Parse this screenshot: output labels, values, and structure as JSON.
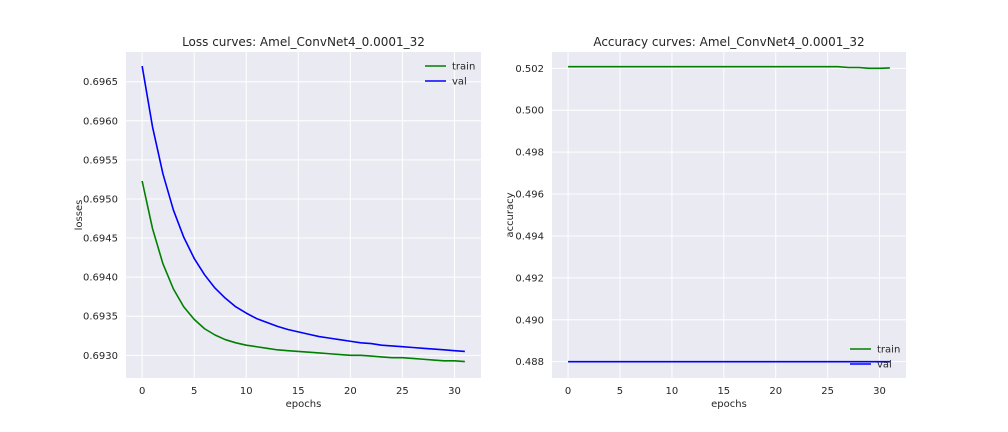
{
  "chart_data": [
    {
      "type": "line",
      "title": "Loss curves: Amel_ConvNet4_0.0001_32",
      "xlabel": "epochs",
      "ylabel": "losses",
      "xlim": [
        -1.55,
        32.55
      ],
      "ylim": [
        0.69271,
        0.69688
      ],
      "xticks": [
        0,
        5,
        10,
        15,
        20,
        25,
        30
      ],
      "yticks": [
        0.693,
        0.6935,
        0.694,
        0.6945,
        0.695,
        0.6955,
        0.696,
        0.6965
      ],
      "ytick_labels": [
        "0.6930",
        "0.6935",
        "0.6940",
        "0.6945",
        "0.6950",
        "0.6955",
        "0.6960",
        "0.6965"
      ],
      "grid": true,
      "legend_position": "upper right",
      "x": [
        0,
        1,
        2,
        3,
        4,
        5,
        6,
        7,
        8,
        9,
        10,
        11,
        12,
        13,
        14,
        15,
        16,
        17,
        18,
        19,
        20,
        21,
        22,
        23,
        24,
        25,
        26,
        27,
        28,
        29,
        30,
        31
      ],
      "series": [
        {
          "name": "train",
          "color": "#008000",
          "values": [
            0.69523,
            0.69462,
            0.69417,
            0.69385,
            0.69362,
            0.69346,
            0.69334,
            0.69326,
            0.6932,
            0.69316,
            0.69313,
            0.69311,
            0.69309,
            0.69307,
            0.69306,
            0.69305,
            0.69304,
            0.69303,
            0.69302,
            0.69301,
            0.693,
            0.693,
            0.69299,
            0.69298,
            0.69297,
            0.69297,
            0.69296,
            0.69295,
            0.69294,
            0.69293,
            0.69293,
            0.69292
          ]
        },
        {
          "name": "val",
          "color": "#0000ff",
          "values": [
            0.6967,
            0.69592,
            0.69532,
            0.69486,
            0.69451,
            0.69424,
            0.69403,
            0.69386,
            0.69373,
            0.69362,
            0.69354,
            0.69347,
            0.69342,
            0.69337,
            0.69333,
            0.6933,
            0.69327,
            0.69324,
            0.69322,
            0.6932,
            0.69318,
            0.69316,
            0.69315,
            0.69313,
            0.69312,
            0.69311,
            0.6931,
            0.69309,
            0.69308,
            0.69307,
            0.69306,
            0.69305
          ]
        }
      ]
    },
    {
      "type": "line",
      "title": "Accuracy curves: Amel_ConvNet4_0.0001_32",
      "xlabel": "epochs",
      "ylabel": "accuracy",
      "xlim": [
        -1.55,
        32.55
      ],
      "ylim": [
        0.48722,
        0.50278
      ],
      "xticks": [
        0,
        5,
        10,
        15,
        20,
        25,
        30
      ],
      "yticks": [
        0.488,
        0.49,
        0.492,
        0.494,
        0.496,
        0.498,
        0.5,
        0.502
      ],
      "ytick_labels": [
        "0.488",
        "0.490",
        "0.492",
        "0.494",
        "0.496",
        "0.498",
        "0.500",
        "0.502"
      ],
      "grid": true,
      "legend_position": "lower right",
      "x": [
        0,
        1,
        2,
        3,
        4,
        5,
        6,
        7,
        8,
        9,
        10,
        11,
        12,
        13,
        14,
        15,
        16,
        17,
        18,
        19,
        20,
        21,
        22,
        23,
        24,
        25,
        26,
        27,
        28,
        29,
        30,
        31
      ],
      "series": [
        {
          "name": "train",
          "color": "#008000",
          "values": [
            0.50208,
            0.50208,
            0.50208,
            0.50208,
            0.50208,
            0.50208,
            0.50208,
            0.50208,
            0.50208,
            0.50208,
            0.50208,
            0.50208,
            0.50208,
            0.50208,
            0.50208,
            0.50208,
            0.50208,
            0.50208,
            0.50208,
            0.50208,
            0.50208,
            0.50208,
            0.50208,
            0.50208,
            0.50208,
            0.50208,
            0.50208,
            0.50204,
            0.50204,
            0.502,
            0.502,
            0.50202
          ]
        },
        {
          "name": "val",
          "color": "#0000ff",
          "values": [
            0.488,
            0.488,
            0.488,
            0.488,
            0.488,
            0.488,
            0.488,
            0.488,
            0.488,
            0.488,
            0.488,
            0.488,
            0.488,
            0.488,
            0.488,
            0.488,
            0.488,
            0.488,
            0.488,
            0.488,
            0.488,
            0.488,
            0.488,
            0.488,
            0.488,
            0.488,
            0.488,
            0.488,
            0.488,
            0.488,
            0.488,
            0.488
          ]
        }
      ]
    }
  ]
}
